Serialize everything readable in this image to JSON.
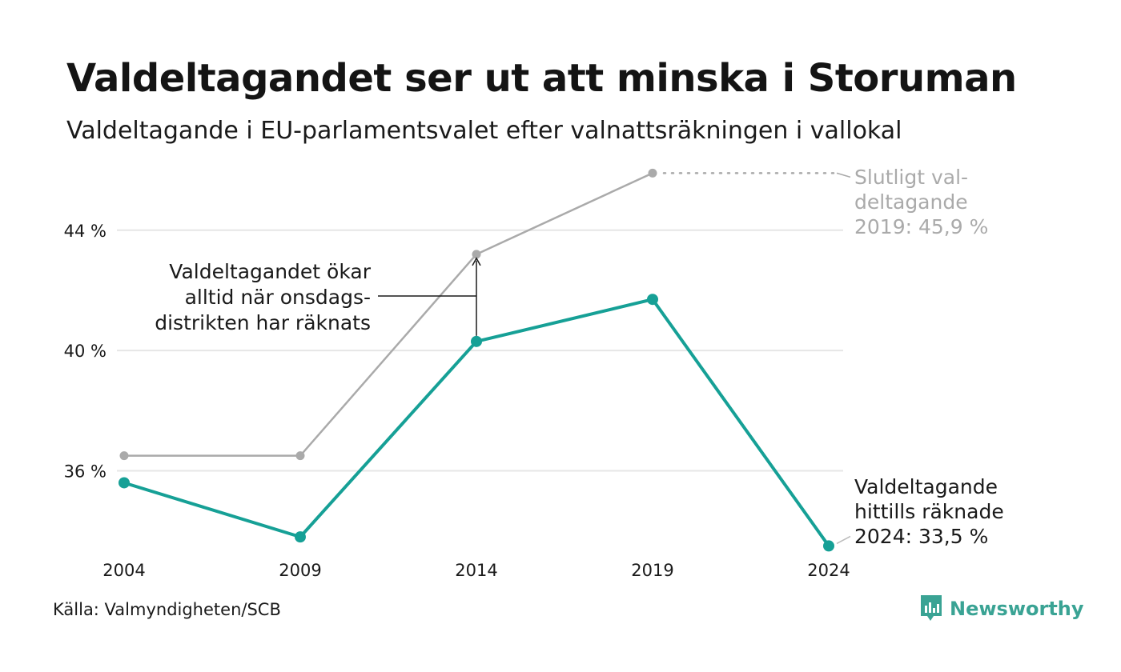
{
  "title": "Valdeltagandet ser ut att minska i Storuman",
  "subtitle": "Valdeltagande i EU-parlamentsvalet efter valnattsräkningen i vallokal",
  "source": "Källa: Valmyndigheten/SCB",
  "brand": {
    "name": "Newsworthy",
    "icon": "newsworthy-logo-icon"
  },
  "colors": {
    "final": "#aaaaaa",
    "counted": "#16a096",
    "grid": "#e6e6e6",
    "text": "#1a1a1a",
    "brand": "#3aa394"
  },
  "chart_data": {
    "type": "line",
    "x": [
      2004,
      2009,
      2014,
      2019,
      2024
    ],
    "x_tick_labels": [
      "2004",
      "2009",
      "2014",
      "2019",
      "2024"
    ],
    "ylim": [
      32.5,
      47
    ],
    "y_ticks": [
      36,
      40,
      44
    ],
    "y_tick_labels": [
      "36 %",
      "40 %",
      "44 %"
    ],
    "grid": true,
    "series": [
      {
        "key": "final",
        "values": [
          36.5,
          36.5,
          43.2,
          45.9,
          null
        ]
      },
      {
        "key": "counted",
        "values": [
          35.6,
          33.8,
          40.3,
          41.7,
          33.5
        ]
      }
    ],
    "annotations": {
      "final_label": [
        "Slutligt val-",
        "deltagande",
        "2019: 45,9 %"
      ],
      "counted_label": [
        "Valdeltagande",
        "hittills räknade",
        "2024: 33,5 %"
      ],
      "increase_note": [
        "Valdeltagandet ökar",
        "alltid när onsdags-",
        "distrikten har räknats"
      ]
    }
  }
}
